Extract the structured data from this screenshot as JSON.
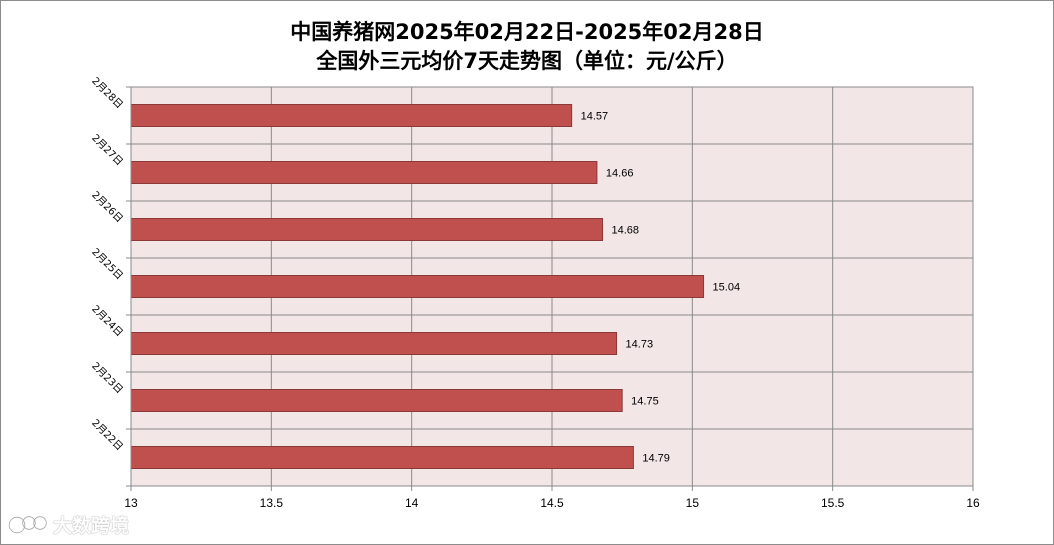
{
  "chart_data": {
    "type": "bar",
    "orientation": "horizontal",
    "title_lines": [
      "中国养猪网2025年02月22日-2025年02月28日",
      "全国外三元均价7天走势图（单位：元/公斤）"
    ],
    "categories": [
      "2月22日",
      "2月23日",
      "2月24日",
      "2月25日",
      "2月26日",
      "2月27日",
      "2月28日"
    ],
    "values": [
      14.79,
      14.75,
      14.73,
      15.04,
      14.68,
      14.66,
      14.57
    ],
    "data_labels": [
      "14.79",
      "14.75",
      "14.73",
      "15.04",
      "14.68",
      "14.66",
      "14.57"
    ],
    "xlim": [
      13,
      16
    ],
    "xticks": [
      "13",
      "13.5",
      "14",
      "14.5",
      "15",
      "15.5",
      "16"
    ],
    "grid": true,
    "bar_color": "#c0504d",
    "plot_background": "#f2e6e6"
  },
  "watermark": {
    "icon": "dashuju-logo-icon",
    "text": "大数跨境"
  }
}
